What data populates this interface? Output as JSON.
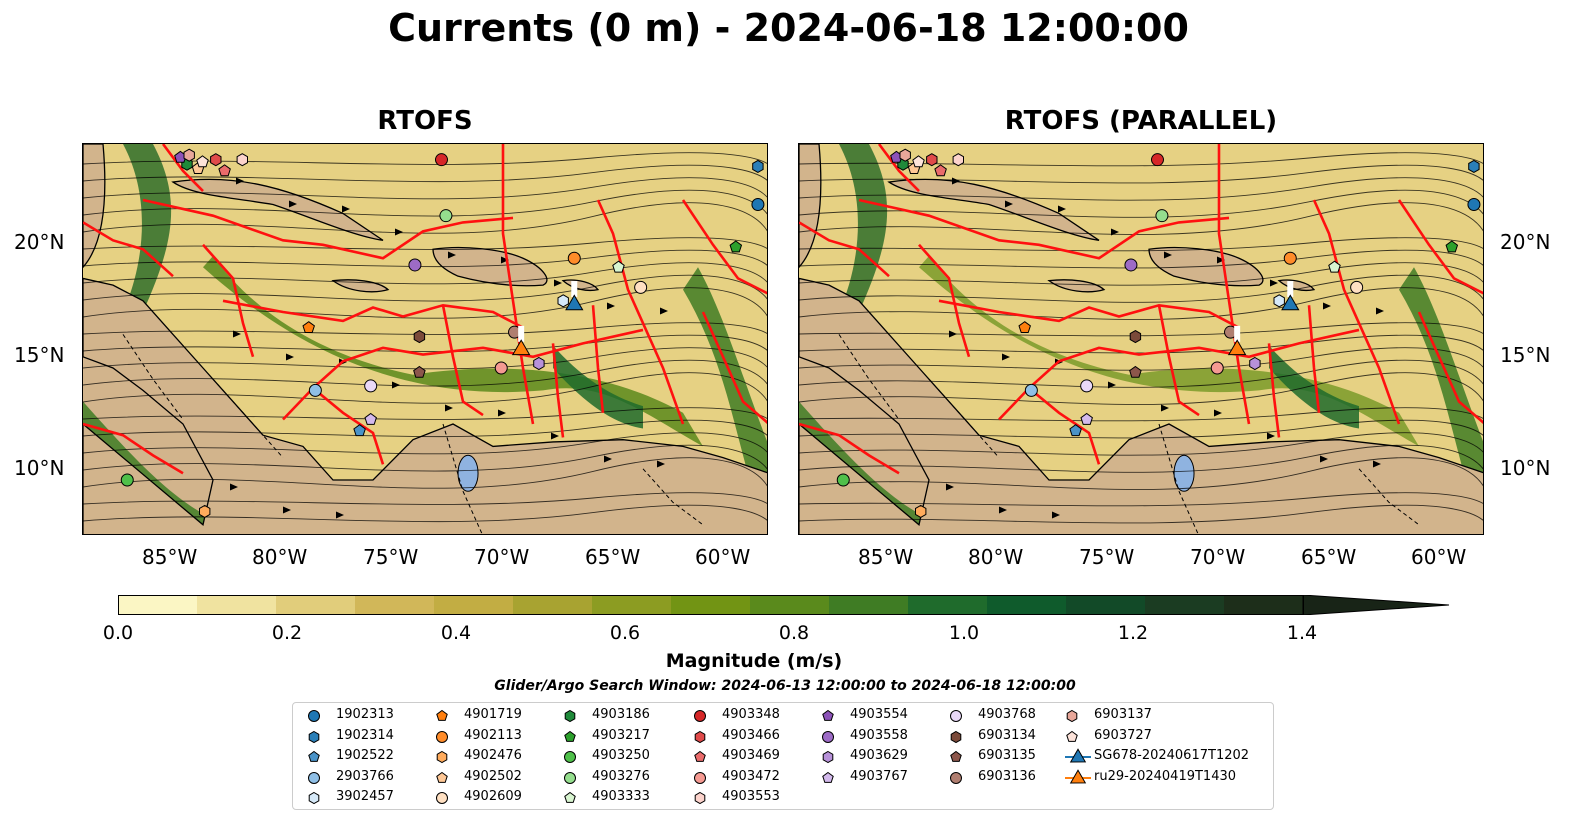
{
  "figure": {
    "title": "Currents (0 m) - 2024-06-18 12:00:00",
    "panels": [
      {
        "title": "RTOFS"
      },
      {
        "title": "RTOFS (PARALLEL)"
      }
    ]
  },
  "axes": {
    "x_ticks": [
      "85°W",
      "80°W",
      "75°W",
      "70°W",
      "65°W",
      "60°W"
    ],
    "y_ticks": [
      "20°N",
      "15°N",
      "10°N"
    ],
    "lon_range": [
      -89,
      -58
    ],
    "lat_range": [
      7,
      24.5
    ]
  },
  "colorbar": {
    "label": "Magnitude (m/s)",
    "ticks": [
      "0.0",
      "0.2",
      "0.4",
      "0.6",
      "0.8",
      "1.0",
      "1.2",
      "1.4"
    ],
    "colors": [
      "#fbf6c4",
      "#f0e3a0",
      "#e1cd7b",
      "#d1b759",
      "#c2ad43",
      "#a8a331",
      "#8c9c22",
      "#729414",
      "#5a8a1c",
      "#3f7c24",
      "#1f6b2c",
      "#0f5b2c",
      "#124a28",
      "#1b3c22",
      "#1d2e1a",
      "#182417"
    ],
    "extend": "max"
  },
  "search_window": "Glider/Argo Search Window: 2024-06-13 12:00:00 to 2024-06-18 12:00:00",
  "legend": {
    "columns": [
      [
        {
          "label": "1902313",
          "marker": "circle",
          "color": "#1f77b4"
        },
        {
          "label": "1902314",
          "marker": "hexagon",
          "color": "#2a7fb8"
        },
        {
          "label": "1902522",
          "marker": "pentagon",
          "color": "#4a93c8"
        },
        {
          "label": "2903766",
          "marker": "circle",
          "color": "#8fbfe6"
        },
        {
          "label": "3902457",
          "marker": "hexagon",
          "color": "#d6e9f8"
        }
      ],
      [
        {
          "label": "4901719",
          "marker": "pentagon",
          "color": "#ff7f0e"
        },
        {
          "label": "4902113",
          "marker": "circle",
          "color": "#ff8c2a"
        },
        {
          "label": "4902476",
          "marker": "hexagon",
          "color": "#ffab5c"
        },
        {
          "label": "4902502",
          "marker": "pentagon",
          "color": "#ffc896"
        },
        {
          "label": "4902609",
          "marker": "circle",
          "color": "#ffe0c2"
        }
      ],
      [
        {
          "label": "4903186",
          "marker": "hexagon",
          "color": "#1f8a3a"
        },
        {
          "label": "4903217",
          "marker": "pentagon",
          "color": "#2ca02c"
        },
        {
          "label": "4903250",
          "marker": "circle",
          "color": "#4fc04a"
        },
        {
          "label": "4903276",
          "marker": "circle",
          "color": "#95de8e"
        },
        {
          "label": "4903333",
          "marker": "pentagon",
          "color": "#d8f5d0"
        }
      ],
      [
        {
          "label": "4903348",
          "marker": "circle",
          "color": "#d62728"
        },
        {
          "label": "4903466",
          "marker": "hexagon",
          "color": "#e04a4a"
        },
        {
          "label": "4903469",
          "marker": "pentagon",
          "color": "#ea6b6b"
        },
        {
          "label": "4903472",
          "marker": "circle",
          "color": "#f59a92"
        },
        {
          "label": "4903553",
          "marker": "hexagon",
          "color": "#fcd3cc"
        }
      ],
      [
        {
          "label": "4903554",
          "marker": "pentagon",
          "color": "#8c52b8"
        },
        {
          "label": "4903558",
          "marker": "circle",
          "color": "#9d6bc6"
        },
        {
          "label": "4903629",
          "marker": "hexagon",
          "color": "#b791d9"
        },
        {
          "label": "4903767",
          "marker": "pentagon",
          "color": "#d3b9ec"
        }
      ],
      [
        {
          "label": "4903768",
          "marker": "circle",
          "color": "#e9d8f7"
        },
        {
          "label": "6903134",
          "marker": "hexagon",
          "color": "#7b4a3a"
        },
        {
          "label": "6903135",
          "marker": "pentagon",
          "color": "#8c564b"
        },
        {
          "label": "6903136",
          "marker": "circle",
          "color": "#b07e70"
        }
      ],
      [
        {
          "label": "6903137",
          "marker": "hexagon",
          "color": "#e8a79a"
        },
        {
          "label": "6903727",
          "marker": "pentagon",
          "color": "#fde3da"
        },
        {
          "label": "SG678-20240617T1202",
          "marker": "triangle-line",
          "color": "#1f77b4"
        },
        {
          "label": "ru29-20240419T1430",
          "marker": "triangle-line",
          "color": "#ff7f0e"
        }
      ]
    ]
  },
  "platforms": [
    {
      "id": "1902313",
      "lon": -58.5,
      "lat": 21.8
    },
    {
      "id": "1902314",
      "lon": -58.5,
      "lat": 23.5
    },
    {
      "id": "1902522",
      "lon": -76.5,
      "lat": 11.7
    },
    {
      "id": "2903766",
      "lon": -78.5,
      "lat": 13.5
    },
    {
      "id": "3902457",
      "lon": -67.3,
      "lat": 17.5
    },
    {
      "id": "4901719",
      "lon": -78.8,
      "lat": 16.3
    },
    {
      "id": "4902113",
      "lon": -66.8,
      "lat": 19.4
    },
    {
      "id": "4902476",
      "lon": -83.5,
      "lat": 8.1
    },
    {
      "id": "4902502",
      "lon": -83.8,
      "lat": 23.4
    },
    {
      "id": "4902609",
      "lon": -63.8,
      "lat": 18.1
    },
    {
      "id": "4903186",
      "lon": -84.3,
      "lat": 23.6
    },
    {
      "id": "4903217",
      "lon": -59.5,
      "lat": 19.9
    },
    {
      "id": "4903250",
      "lon": -87.0,
      "lat": 9.5
    },
    {
      "id": "4903276",
      "lon": -72.6,
      "lat": 21.3
    },
    {
      "id": "4903333",
      "lon": -64.8,
      "lat": 19.0
    },
    {
      "id": "4903348",
      "lon": -72.8,
      "lat": 23.8
    },
    {
      "id": "4903466",
      "lon": -83.0,
      "lat": 23.8
    },
    {
      "id": "4903469",
      "lon": -82.6,
      "lat": 23.3
    },
    {
      "id": "4903472",
      "lon": -70.1,
      "lat": 14.5
    },
    {
      "id": "4903553",
      "lon": -81.8,
      "lat": 23.8
    },
    {
      "id": "4903554",
      "lon": -84.6,
      "lat": 23.9
    },
    {
      "id": "4903558",
      "lon": -74.0,
      "lat": 19.1
    },
    {
      "id": "4903629",
      "lon": -68.4,
      "lat": 14.7
    },
    {
      "id": "4903767",
      "lon": -76.0,
      "lat": 12.2
    },
    {
      "id": "4903768",
      "lon": -76.0,
      "lat": 13.7
    },
    {
      "id": "6903134",
      "lon": -73.8,
      "lat": 15.9
    },
    {
      "id": "6903135",
      "lon": -73.8,
      "lat": 14.3
    },
    {
      "id": "6903136",
      "lon": -69.5,
      "lat": 16.1
    },
    {
      "id": "6903137",
      "lon": -84.2,
      "lat": 24.0
    },
    {
      "id": "6903727",
      "lon": -83.6,
      "lat": 23.7
    },
    {
      "id": "SG678-20240617T1202",
      "lon": -66.8,
      "lat": 17.4
    },
    {
      "id": "ru29-20240419T1430",
      "lon": -69.2,
      "lat": 15.4
    }
  ]
}
